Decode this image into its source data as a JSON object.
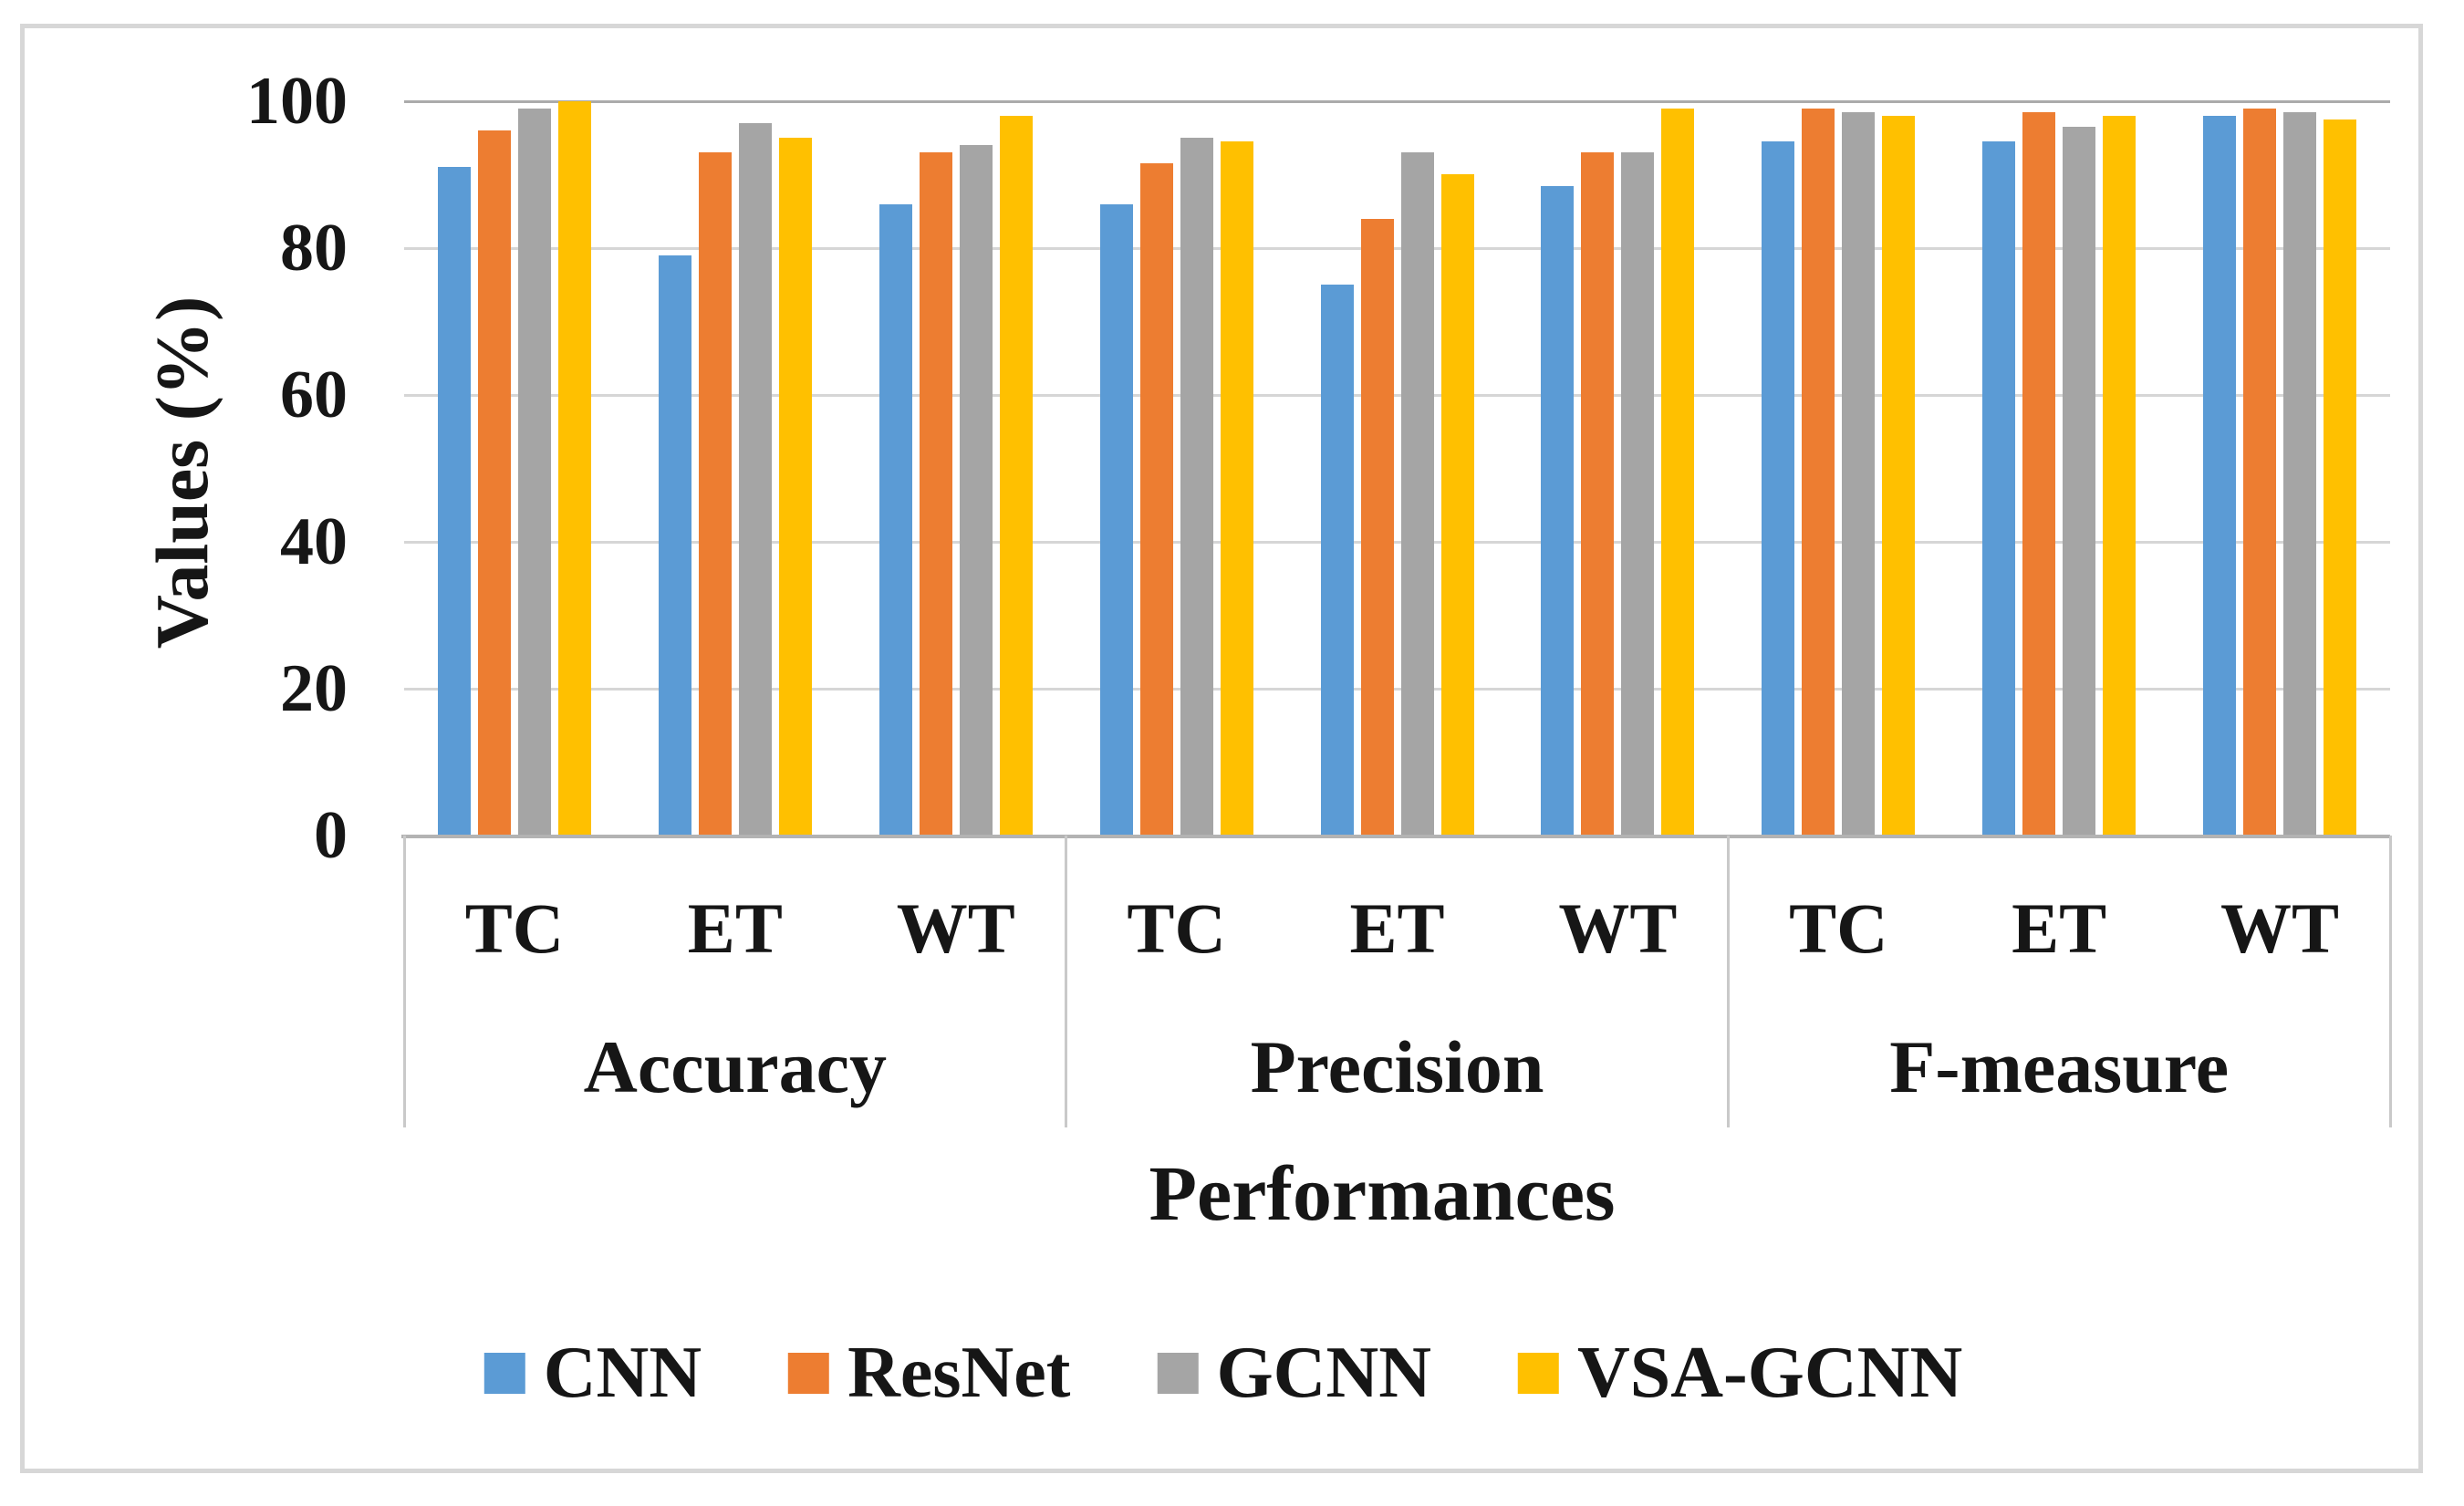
{
  "chart_data": {
    "type": "bar",
    "title": "",
    "xlabel": "Performances",
    "ylabel": "Values (%)",
    "ylim": [
      0,
      100
    ],
    "yticks": [
      0,
      20,
      40,
      60,
      80,
      100
    ],
    "grid": true,
    "legend_position": "bottom-center",
    "category_groups": [
      {
        "label": "Accuracy",
        "categories": [
          "TC",
          "ET",
          "WT"
        ]
      },
      {
        "label": "Precision",
        "categories": [
          "TC",
          "ET",
          "WT"
        ]
      },
      {
        "label": "F-measure",
        "categories": [
          "TC",
          "ET",
          "WT"
        ]
      }
    ],
    "series": [
      {
        "name": "CNN",
        "color": "#5B9BD5",
        "values": [
          91,
          79,
          86,
          86,
          75,
          88.5,
          94.5,
          94.5,
          98
        ]
      },
      {
        "name": "ResNet",
        "color": "#ED7D31",
        "values": [
          96,
          93,
          93,
          91.5,
          84,
          93,
          99,
          98.5,
          99
        ]
      },
      {
        "name": "GCNN",
        "color": "#A5A5A5",
        "values": [
          99,
          97,
          94,
          95,
          93,
          93,
          98.5,
          96.5,
          98.5
        ]
      },
      {
        "name": "VSA-GCNN",
        "color": "#FFC000",
        "values": [
          100,
          95,
          98,
          94.5,
          90,
          99,
          98,
          98,
          97.5
        ]
      }
    ]
  },
  "colors": {
    "frame_border": "#d7d7d7",
    "gridline_minor": "#d6d6d6",
    "gridline_major": "#ababab",
    "text": "#161616"
  }
}
